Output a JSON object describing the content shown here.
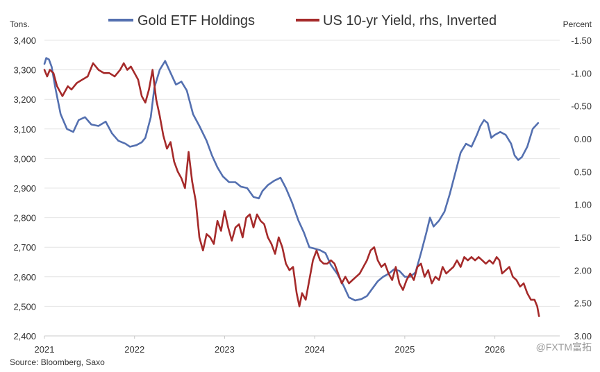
{
  "chart_data": {
    "type": "line",
    "left_unit": "Tons.",
    "right_unit": "Percent",
    "source": "Source: Bloomberg, Saxo",
    "watermark": "@FXTM富拓",
    "x_tick_labels": [
      "2021",
      "2022",
      "2023",
      "2024",
      "2025",
      "2026"
    ],
    "xlim": [
      2021.0,
      2026.72
    ],
    "y_left": {
      "lim": [
        2400,
        3400
      ],
      "ticks": [
        2400,
        2500,
        2600,
        2700,
        2800,
        2900,
        3000,
        3100,
        3200,
        3300,
        3400
      ],
      "tick_labels": [
        "2,400",
        "2,500",
        "2,600",
        "2,700",
        "2,800",
        "2,900",
        "3,000",
        "3,100",
        "3,200",
        "3,300",
        "3,400"
      ]
    },
    "y_right": {
      "inverted": true,
      "lim": [
        -1.5,
        3.0
      ],
      "ticks": [
        -1.5,
        -1.0,
        -0.5,
        0.0,
        0.5,
        1.0,
        1.5,
        2.0,
        2.5,
        3.0
      ],
      "tick_labels": [
        "-1.50",
        "-1.00",
        "-0.50",
        "0.00",
        "0.50",
        "1.00",
        "1.50",
        "2.00",
        "2.50",
        "3.00"
      ]
    },
    "grid": {
      "horizontal": true,
      "vertical": false
    },
    "legend_position": "top",
    "series": [
      {
        "name": "Gold ETF Holdings",
        "axis": "left",
        "color": "#5470b0",
        "points": [
          [
            2021.0,
            3320
          ],
          [
            2021.02,
            3340
          ],
          [
            2021.05,
            3335
          ],
          [
            2021.08,
            3310
          ],
          [
            2021.12,
            3240
          ],
          [
            2021.18,
            3150
          ],
          [
            2021.25,
            3100
          ],
          [
            2021.32,
            3090
          ],
          [
            2021.38,
            3130
          ],
          [
            2021.45,
            3140
          ],
          [
            2021.52,
            3115
          ],
          [
            2021.6,
            3110
          ],
          [
            2021.68,
            3125
          ],
          [
            2021.75,
            3085
          ],
          [
            2021.82,
            3060
          ],
          [
            2021.9,
            3050
          ],
          [
            2021.95,
            3040
          ],
          [
            2022.02,
            3045
          ],
          [
            2022.08,
            3055
          ],
          [
            2022.12,
            3070
          ],
          [
            2022.18,
            3140
          ],
          [
            2022.22,
            3240
          ],
          [
            2022.28,
            3300
          ],
          [
            2022.34,
            3330
          ],
          [
            2022.4,
            3290
          ],
          [
            2022.46,
            3250
          ],
          [
            2022.52,
            3260
          ],
          [
            2022.58,
            3230
          ],
          [
            2022.65,
            3150
          ],
          [
            2022.72,
            3110
          ],
          [
            2022.8,
            3060
          ],
          [
            2022.86,
            3010
          ],
          [
            2022.92,
            2970
          ],
          [
            2022.98,
            2940
          ],
          [
            2023.05,
            2920
          ],
          [
            2023.12,
            2920
          ],
          [
            2023.18,
            2905
          ],
          [
            2023.25,
            2900
          ],
          [
            2023.32,
            2870
          ],
          [
            2023.38,
            2865
          ],
          [
            2023.42,
            2890
          ],
          [
            2023.48,
            2910
          ],
          [
            2023.55,
            2925
          ],
          [
            2023.62,
            2935
          ],
          [
            2023.68,
            2900
          ],
          [
            2023.75,
            2850
          ],
          [
            2023.82,
            2790
          ],
          [
            2023.88,
            2750
          ],
          [
            2023.94,
            2700
          ],
          [
            2024.0,
            2695
          ],
          [
            2024.06,
            2690
          ],
          [
            2024.12,
            2680
          ],
          [
            2024.18,
            2640
          ],
          [
            2024.25,
            2610
          ],
          [
            2024.32,
            2570
          ],
          [
            2024.38,
            2530
          ],
          [
            2024.45,
            2520
          ],
          [
            2024.52,
            2525
          ],
          [
            2024.58,
            2535
          ],
          [
            2024.64,
            2560
          ],
          [
            2024.7,
            2585
          ],
          [
            2024.76,
            2600
          ],
          [
            2024.82,
            2610
          ],
          [
            2024.88,
            2625
          ],
          [
            2024.94,
            2620
          ],
          [
            2025.0,
            2600
          ],
          [
            2025.06,
            2600
          ],
          [
            2025.12,
            2615
          ],
          [
            2025.18,
            2680
          ],
          [
            2025.24,
            2750
          ],
          [
            2025.28,
            2800
          ],
          [
            2025.32,
            2770
          ],
          [
            2025.38,
            2790
          ],
          [
            2025.44,
            2820
          ],
          [
            2025.5,
            2880
          ],
          [
            2025.56,
            2950
          ],
          [
            2025.62,
            3020
          ],
          [
            2025.68,
            3050
          ],
          [
            2025.74,
            3040
          ],
          [
            2025.8,
            3080
          ],
          [
            2025.84,
            3110
          ],
          [
            2025.88,
            3130
          ],
          [
            2025.92,
            3120
          ],
          [
            2025.96,
            3070
          ],
          [
            2026.0,
            3080
          ],
          [
            2026.06,
            3090
          ],
          [
            2026.12,
            3080
          ],
          [
            2026.18,
            3050
          ],
          [
            2026.22,
            3010
          ],
          [
            2026.26,
            2995
          ],
          [
            2026.3,
            3005
          ],
          [
            2026.36,
            3040
          ],
          [
            2026.42,
            3100
          ],
          [
            2026.48,
            3120
          ]
        ]
      },
      {
        "name": "US 10-yr Yield, rhs, Inverted",
        "axis": "right",
        "color": "#a52a2a",
        "points": [
          [
            2021.0,
            -1.05
          ],
          [
            2021.03,
            -0.95
          ],
          [
            2021.06,
            -1.05
          ],
          [
            2021.1,
            -1.0
          ],
          [
            2021.14,
            -0.8
          ],
          [
            2021.2,
            -0.65
          ],
          [
            2021.26,
            -0.8
          ],
          [
            2021.3,
            -0.75
          ],
          [
            2021.36,
            -0.85
          ],
          [
            2021.42,
            -0.9
          ],
          [
            2021.48,
            -0.95
          ],
          [
            2021.54,
            -1.15
          ],
          [
            2021.6,
            -1.05
          ],
          [
            2021.66,
            -1.0
          ],
          [
            2021.72,
            -1.0
          ],
          [
            2021.78,
            -0.95
          ],
          [
            2021.84,
            -1.05
          ],
          [
            2021.88,
            -1.15
          ],
          [
            2021.92,
            -1.05
          ],
          [
            2021.96,
            -1.1
          ],
          [
            2022.0,
            -1.0
          ],
          [
            2022.04,
            -0.9
          ],
          [
            2022.08,
            -0.65
          ],
          [
            2022.12,
            -0.55
          ],
          [
            2022.16,
            -0.75
          ],
          [
            2022.2,
            -1.05
          ],
          [
            2022.24,
            -0.6
          ],
          [
            2022.28,
            -0.35
          ],
          [
            2022.32,
            -0.05
          ],
          [
            2022.36,
            0.15
          ],
          [
            2022.4,
            0.05
          ],
          [
            2022.44,
            0.35
          ],
          [
            2022.48,
            0.5
          ],
          [
            2022.52,
            0.6
          ],
          [
            2022.56,
            0.75
          ],
          [
            2022.6,
            0.2
          ],
          [
            2022.64,
            0.65
          ],
          [
            2022.68,
            0.95
          ],
          [
            2022.72,
            1.5
          ],
          [
            2022.76,
            1.7
          ],
          [
            2022.8,
            1.45
          ],
          [
            2022.84,
            1.5
          ],
          [
            2022.88,
            1.6
          ],
          [
            2022.92,
            1.25
          ],
          [
            2022.96,
            1.4
          ],
          [
            2023.0,
            1.1
          ],
          [
            2023.04,
            1.35
          ],
          [
            2023.08,
            1.55
          ],
          [
            2023.12,
            1.35
          ],
          [
            2023.16,
            1.3
          ],
          [
            2023.2,
            1.5
          ],
          [
            2023.24,
            1.2
          ],
          [
            2023.28,
            1.15
          ],
          [
            2023.32,
            1.35
          ],
          [
            2023.36,
            1.15
          ],
          [
            2023.4,
            1.25
          ],
          [
            2023.44,
            1.3
          ],
          [
            2023.48,
            1.5
          ],
          [
            2023.52,
            1.6
          ],
          [
            2023.56,
            1.75
          ],
          [
            2023.6,
            1.5
          ],
          [
            2023.64,
            1.65
          ],
          [
            2023.68,
            1.9
          ],
          [
            2023.72,
            2.0
          ],
          [
            2023.76,
            1.95
          ],
          [
            2023.8,
            2.35
          ],
          [
            2023.83,
            2.55
          ],
          [
            2023.86,
            2.35
          ],
          [
            2023.9,
            2.45
          ],
          [
            2023.94,
            2.15
          ],
          [
            2023.98,
            1.85
          ],
          [
            2024.02,
            1.7
          ],
          [
            2024.06,
            1.85
          ],
          [
            2024.1,
            1.9
          ],
          [
            2024.14,
            1.9
          ],
          [
            2024.18,
            1.85
          ],
          [
            2024.22,
            1.9
          ],
          [
            2024.26,
            2.05
          ],
          [
            2024.3,
            2.2
          ],
          [
            2024.34,
            2.1
          ],
          [
            2024.38,
            2.2
          ],
          [
            2024.42,
            2.15
          ],
          [
            2024.46,
            2.1
          ],
          [
            2024.5,
            2.05
          ],
          [
            2024.54,
            1.95
          ],
          [
            2024.58,
            1.85
          ],
          [
            2024.62,
            1.7
          ],
          [
            2024.66,
            1.65
          ],
          [
            2024.7,
            1.85
          ],
          [
            2024.74,
            1.95
          ],
          [
            2024.78,
            1.9
          ],
          [
            2024.82,
            2.05
          ],
          [
            2024.86,
            2.15
          ],
          [
            2024.9,
            1.95
          ],
          [
            2024.94,
            2.2
          ],
          [
            2024.98,
            2.3
          ],
          [
            2025.02,
            2.15
          ],
          [
            2025.06,
            2.05
          ],
          [
            2025.1,
            2.15
          ],
          [
            2025.14,
            1.95
          ],
          [
            2025.18,
            1.9
          ],
          [
            2025.22,
            2.1
          ],
          [
            2025.26,
            2.0
          ],
          [
            2025.3,
            2.2
          ],
          [
            2025.34,
            2.1
          ],
          [
            2025.38,
            2.15
          ],
          [
            2025.42,
            1.95
          ],
          [
            2025.46,
            2.05
          ],
          [
            2025.5,
            2.0
          ],
          [
            2025.54,
            1.95
          ],
          [
            2025.58,
            1.85
          ],
          [
            2025.62,
            1.95
          ],
          [
            2025.66,
            1.8
          ],
          [
            2025.7,
            1.85
          ],
          [
            2025.74,
            1.8
          ],
          [
            2025.78,
            1.85
          ],
          [
            2025.82,
            1.8
          ],
          [
            2025.86,
            1.85
          ],
          [
            2025.9,
            1.9
          ],
          [
            2025.94,
            1.85
          ],
          [
            2025.98,
            1.9
          ],
          [
            2026.02,
            1.8
          ],
          [
            2026.05,
            1.85
          ],
          [
            2026.08,
            2.05
          ],
          [
            2026.12,
            2.0
          ],
          [
            2026.16,
            1.95
          ],
          [
            2026.2,
            2.1
          ],
          [
            2026.24,
            2.15
          ],
          [
            2026.28,
            2.25
          ],
          [
            2026.32,
            2.2
          ],
          [
            2026.36,
            2.35
          ],
          [
            2026.4,
            2.45
          ],
          [
            2026.44,
            2.45
          ],
          [
            2026.47,
            2.55
          ],
          [
            2026.49,
            2.7
          ]
        ]
      }
    ]
  }
}
